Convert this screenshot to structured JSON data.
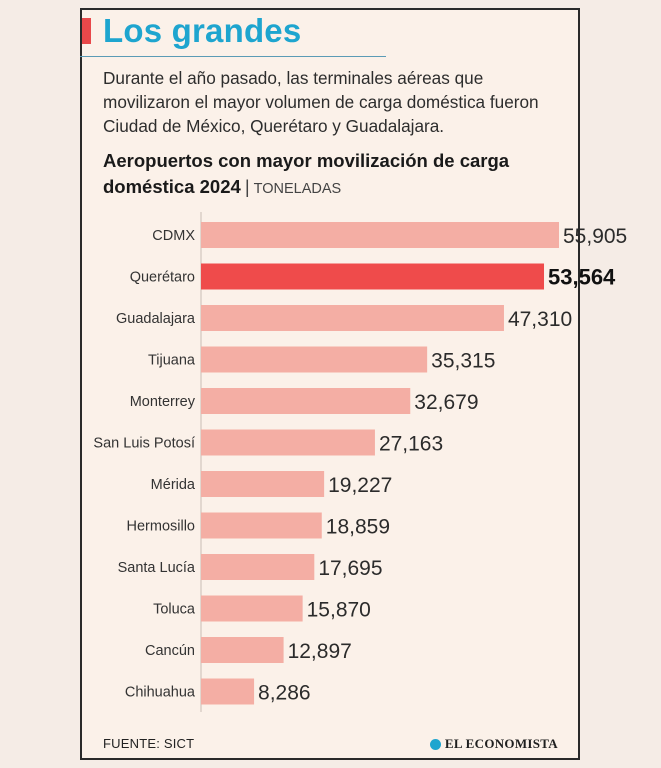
{
  "title": "Los grandes",
  "intro": "Durante el año pasado, las terminales aéreas que movilizaron el mayor volumen de carga doméstica fueron Ciudad de México, Querétaro y Guadalajara.",
  "subtitle": "Aeropuertos con mayor movilización de carga doméstica 2024",
  "unit_label": "TONELADAS",
  "source": "FUENTE: SICT",
  "brand": "EL ECONOMISTA",
  "colors": {
    "bar": "#f4aea4",
    "highlight": "#ef4b4b",
    "accent": "#1ea5cf"
  },
  "chart_data": {
    "type": "bar",
    "orientation": "horizontal",
    "title": "Aeropuertos con mayor movilización de carga doméstica 2024",
    "xlabel": "TONELADAS",
    "ylabel": "",
    "xlim": [
      0,
      60000
    ],
    "highlight": "Querétaro",
    "categories": [
      "CDMX",
      "Querétaro",
      "Guadalajara",
      "Tijuana",
      "Monterrey",
      "San Luis Potosí",
      "Mérida",
      "Hermosillo",
      "Santa Lucía",
      "Toluca",
      "Cancún",
      "Chihuahua"
    ],
    "values": [
      55905,
      53564,
      47310,
      35315,
      32679,
      27163,
      19227,
      18859,
      17695,
      15870,
      12897,
      8286
    ],
    "value_labels": [
      "55,905",
      "53,564",
      "47,310",
      "35,315",
      "32,679",
      "27,163",
      "19,227",
      "18,859",
      "17,695",
      "15,870",
      "12,897",
      "8,286"
    ]
  }
}
